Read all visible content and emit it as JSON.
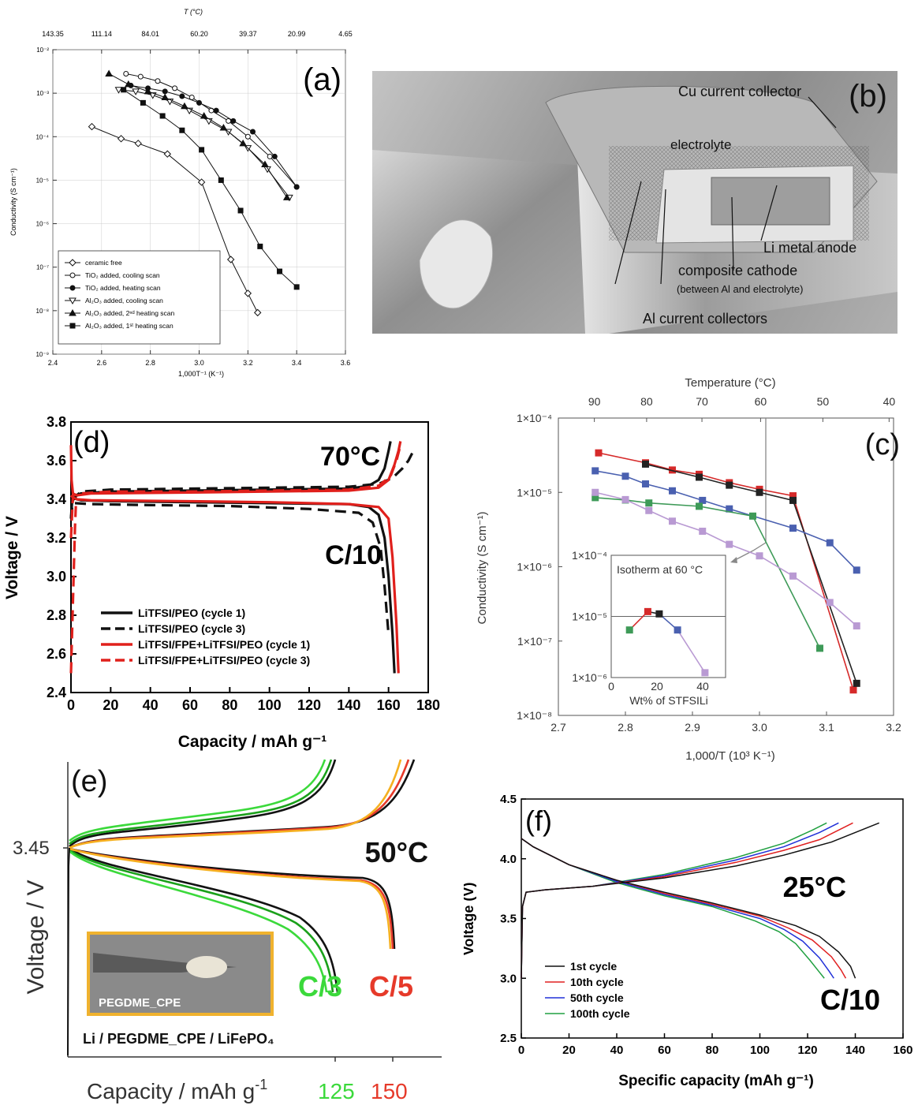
{
  "panels": {
    "a": {
      "label": "(a)",
      "top_axis_title": "T (°C)",
      "top_ticks": [
        "143.35",
        "111.14",
        "84.01",
        "60.20",
        "39.37",
        "20.99",
        "4.65"
      ],
      "x_ticks": [
        "2.4",
        "2.6",
        "2.8",
        "3.0",
        "3.2",
        "3.4",
        "3.6"
      ],
      "x_label": "1,000T⁻¹ (K⁻¹)",
      "y_label": "Conductivity (S cm⁻¹)",
      "y_ticks": [
        "10⁻²",
        "10⁻³",
        "10⁻⁴",
        "10⁻⁵",
        "10⁻⁶",
        "10⁻⁷",
        "10⁻⁸",
        "10⁻⁹"
      ],
      "legend": [
        "ceramic free",
        "TiO₂ added, cooling scan",
        "TiO₂ added, heating scan",
        "Al₂O₃ added, cooling scan",
        "Al₂O₃ added, 2ⁿᵈ heating scan",
        "Al₂O₃ added, 1ˢᵗ heating scan"
      ]
    },
    "b": {
      "label": "(b)",
      "annotations": {
        "cu": "Cu current collector",
        "electrolyte": "electrolyte",
        "li": "Li metal anode",
        "cathode": "composite cathode",
        "cathode_sub": "(between Al and electrolyte)",
        "al": "Al current collectors"
      }
    },
    "c": {
      "label": "(c)",
      "top_axis_title": "Temperature (°C)",
      "top_ticks": [
        "90",
        "80",
        "70",
        "60",
        "50",
        "40"
      ],
      "x_ticks": [
        "2.7",
        "2.8",
        "2.9",
        "3.0",
        "3.1",
        "3.2"
      ],
      "x_label": "1,000/T (10³ K⁻¹)",
      "y_label": "Conductivity (S cm⁻¹)",
      "y_ticks": [
        "1×10⁻⁴",
        "1×10⁻⁵",
        "1×10⁻⁶",
        "1×10⁻⁷",
        "1×10⁻⁸"
      ],
      "inset_title": "Isotherm at 60 °C",
      "inset_y_ticks": [
        "1×10⁻⁴",
        "1×10⁻⁵",
        "1×10⁻⁶"
      ],
      "inset_x_ticks": [
        "0",
        "20",
        "40"
      ],
      "inset_x_label": "Wt% of STFSILi"
    },
    "d": {
      "label": "(d)",
      "temp": "70°C",
      "rate": "C/10",
      "x_label": "Capacity / mAh g⁻¹",
      "y_label": "Voltage / V",
      "x_ticks": [
        "0",
        "20",
        "40",
        "60",
        "80",
        "100",
        "120",
        "140",
        "160",
        "180"
      ],
      "y_ticks": [
        "2.4",
        "2.6",
        "2.8",
        "3.0",
        "3.2",
        "3.4",
        "3.6",
        "3.8"
      ],
      "legend": [
        "LiTFSI/PEO (cycle 1)",
        "LiTFSI/PEO (cycle 3)",
        "LiTFSI/FPE+LiTFSI/PEO (cycle 1)",
        "LiTFSI/FPE+LiTFSI/PEO (cycle 3)"
      ]
    },
    "e": {
      "label": "(e)",
      "temp": "50°C",
      "y_tick": "3.45",
      "y_label": "Voltage / V",
      "x_label": "Capacity / mAh g",
      "x_label_sup": "-1",
      "x_tick_125": "125",
      "x_tick_150": "150",
      "rate_c3": "C/3",
      "rate_c5": "C/5",
      "inset_label": "PEGDME_CPE",
      "cell_label": "Li / PEGDME_CPE / LiFePO₄"
    },
    "f": {
      "label": "(f)",
      "temp": "25°C",
      "rate": "C/10",
      "x_label": "Specific capacity (mAh g⁻¹)",
      "y_label": "Voltage (V)",
      "x_ticks": [
        "0",
        "20",
        "40",
        "60",
        "80",
        "100",
        "120",
        "140",
        "160"
      ],
      "y_ticks": [
        "2.5",
        "3.0",
        "3.5",
        "4.0",
        "4.5"
      ],
      "legend": [
        "1st cycle",
        "10th cycle",
        "50th cycle",
        "100th cycle"
      ]
    }
  },
  "chart_data": [
    {
      "panel": "a",
      "type": "scatter",
      "xlim": [
        2.4,
        3.6
      ],
      "ylim": [
        1e-09,
        0.01
      ],
      "yscale": "log",
      "series": [
        {
          "name": "ceramic free",
          "marker": "open-diamond",
          "x": [
            2.56,
            2.68,
            2.75,
            2.87,
            3.01,
            3.13,
            3.2,
            3.24
          ],
          "y": [
            0.00017,
            9e-05,
            7e-05,
            4e-05,
            9e-06,
            1.5e-07,
            2.5e-08,
            9e-09
          ]
        },
        {
          "name": "TiO₂ added, cooling scan",
          "marker": "open-circle",
          "x": [
            2.7,
            2.76,
            2.83,
            2.9,
            2.97,
            3.05,
            3.12,
            3.2,
            3.29,
            3.4
          ],
          "y": [
            0.0028,
            0.0024,
            0.0019,
            0.0013,
            0.0008,
            0.0004,
            0.00023,
            0.0001,
            3.5e-05,
            7e-06
          ]
        },
        {
          "name": "TiO₂ added, heating scan",
          "marker": "filled-circle",
          "x": [
            2.72,
            2.79,
            2.86,
            2.93,
            3.0,
            3.07,
            3.14,
            3.22,
            3.31,
            3.4
          ],
          "y": [
            0.0015,
            0.0013,
            0.0011,
            0.00085,
            0.0006,
            0.0004,
            0.00023,
            0.00013,
            3.5e-05,
            7e-06
          ]
        },
        {
          "name": "Al₂O₃ added, cooling scan",
          "marker": "open-triangle-down",
          "x": [
            2.67,
            2.74,
            2.81,
            2.88,
            2.96,
            3.04,
            3.12,
            3.2,
            3.28,
            3.37
          ],
          "y": [
            0.0012,
            0.0011,
            0.0009,
            0.00065,
            0.0004,
            0.00023,
            0.00013,
            5.5e-05,
            1.8e-05,
            4e-06
          ]
        },
        {
          "name": "Al₂O₃ added, 2ⁿᵈ heating scan",
          "marker": "filled-triangle",
          "x": [
            2.63,
            2.71,
            2.79,
            2.86,
            2.94,
            3.02,
            3.1,
            3.18,
            3.27,
            3.36
          ],
          "y": [
            0.0028,
            0.0016,
            0.0011,
            0.0008,
            0.0005,
            0.0003,
            0.00016,
            7e-05,
            2.3e-05,
            4e-06
          ]
        },
        {
          "name": "Al₂O₃ added, 1ˢᵗ heating scan",
          "marker": "filled-square",
          "x": [
            2.69,
            2.77,
            2.85,
            2.93,
            3.01,
            3.09,
            3.17,
            3.25,
            3.33,
            3.4
          ],
          "y": [
            0.0012,
            0.0006,
            0.0003,
            0.00014,
            5e-05,
            1e-05,
            2e-06,
            3e-07,
            8e-08,
            3.5e-08
          ]
        }
      ]
    },
    {
      "panel": "c",
      "type": "line",
      "xlim": [
        2.7,
        3.2
      ],
      "ylim": [
        1e-08,
        0.0001
      ],
      "yscale": "log",
      "series": [
        {
          "color": "#d62a2a",
          "x": [
            2.76,
            2.83,
            2.87,
            2.91,
            2.955,
            3.0,
            3.05,
            3.14
          ],
          "y": [
            3.4e-05,
            2.5e-05,
            2e-05,
            1.75e-05,
            1.35e-05,
            1.1e-05,
            9e-06,
            2.2e-08
          ]
        },
        {
          "color": "#222222",
          "x": [
            2.83,
            2.91,
            2.955,
            3.0,
            3.05,
            3.145
          ],
          "y": [
            2.4e-05,
            1.6e-05,
            1.25e-05,
            1e-05,
            7.8e-06,
            2.7e-08
          ]
        },
        {
          "color": "#4a60b0",
          "x": [
            2.755,
            2.8,
            2.83,
            2.87,
            2.915,
            2.955,
            3.05,
            3.105,
            3.145
          ],
          "y": [
            1.95e-05,
            1.65e-05,
            1.3e-05,
            1.05e-05,
            7.8e-06,
            6e-06,
            3.3e-06,
            2.1e-06,
            9e-07
          ]
        },
        {
          "color": "#3e9a58",
          "x": [
            2.755,
            2.8,
            2.835,
            2.91,
            2.99,
            3.09
          ],
          "y": [
            8.5e-06,
            7.9e-06,
            7.2e-06,
            6.5e-06,
            4.8e-06,
            8e-08
          ]
        },
        {
          "color": "#b99ad3",
          "x": [
            2.755,
            2.8,
            2.835,
            2.87,
            2.915,
            2.955,
            3.0,
            3.05,
            3.105,
            3.145
          ],
          "y": [
            1e-05,
            8e-06,
            5.7e-06,
            4.1e-06,
            3e-06,
            2e-06,
            1.4e-06,
            7.5e-07,
            3.3e-07,
            1.6e-07
          ]
        }
      ],
      "inset": {
        "xlim": [
          0,
          50
        ],
        "ylim": [
          1e-06,
          0.0001
        ],
        "x": [
          8,
          16,
          21,
          29,
          41
        ],
        "y": [
          6e-06,
          1.2e-05,
          1.1e-05,
          6e-06,
          1.2e-06
        ],
        "colors": [
          "#3e9a58",
          "#d62a2a",
          "#222222",
          "#4a60b0",
          "#b99ad3"
        ]
      }
    },
    {
      "panel": "d",
      "type": "line",
      "xlim": [
        0,
        180
      ],
      "ylim": [
        2.4,
        3.8
      ],
      "series": [
        {
          "name": "LiTFSI/PEO (cycle 1)",
          "color": "#111111",
          "dash": false,
          "charge": {
            "x": [
              0,
              0.5,
              2,
              5,
              20,
              60,
              100,
              140,
              150,
              155,
              158,
              160,
              161
            ],
            "y": [
              3.3,
              3.38,
              3.42,
              3.43,
              3.44,
              3.445,
              3.45,
              3.455,
              3.47,
              3.5,
              3.56,
              3.65,
              3.7
            ]
          },
          "discharge": {
            "x": [
              0,
              1,
              3,
              5,
              20,
              60,
              100,
              140,
              150,
              155,
              158,
              160,
              162,
              163
            ],
            "y": [
              3.42,
              3.41,
              3.4,
              3.395,
              3.39,
              3.385,
              3.38,
              3.375,
              3.36,
              3.32,
              3.2,
              3.0,
              2.7,
              2.5
            ]
          }
        },
        {
          "name": "LiTFSI/PEO (cycle 3)",
          "color": "#111111",
          "dash": true,
          "charge": {
            "x": [
              0,
              1,
              5,
              20,
              60,
              100,
              140,
              155,
              162,
              167,
              170,
              172
            ],
            "y": [
              3.3,
              3.4,
              3.44,
              3.45,
              3.455,
              3.46,
              3.465,
              3.48,
              3.51,
              3.56,
              3.6,
              3.64
            ]
          },
          "discharge": {
            "x": [
              2,
              10,
              40,
              80,
              120,
              145,
              152,
              156,
              158,
              160
            ],
            "y": [
              3.38,
              3.375,
              3.37,
              3.365,
              3.35,
              3.33,
              3.28,
              3.15,
              2.95,
              2.7
            ]
          }
        },
        {
          "name": "LiTFSI/FPE+LiTFSI/PEO (cycle 1)",
          "color": "#e0201c",
          "dash": false,
          "charge": {
            "x": [
              0,
              0.3,
              1,
              3,
              10,
              60,
              100,
              140,
              155,
              160,
              163,
              165,
              166
            ],
            "y": [
              3.68,
              3.5,
              3.43,
              3.42,
              3.43,
              3.435,
              3.44,
              3.445,
              3.46,
              3.5,
              3.58,
              3.65,
              3.7
            ]
          },
          "discharge": {
            "x": [
              0,
              1,
              3,
              10,
              60,
              100,
              140,
              155,
              160,
              162,
              164,
              165
            ],
            "y": [
              3.42,
              3.41,
              3.4,
              3.395,
              3.39,
              3.385,
              3.375,
              3.36,
              3.3,
              3.1,
              2.75,
              2.5
            ]
          }
        },
        {
          "name": "LiTFSI/FPE+LiTFSI/PEO (cycle 3)",
          "color": "#e0201c",
          "dash": true,
          "charge": {
            "x": [
              0,
              1,
              5,
              20,
              60,
              100,
              140,
              155,
              161,
              164,
              166
            ],
            "y": [
              3.2,
              3.42,
              3.43,
              3.44,
              3.44,
              3.445,
              3.45,
              3.47,
              3.52,
              3.6,
              3.68
            ]
          },
          "discharge": {
            "x": [
              0,
              0.4,
              0.8,
              1.2,
              1.6,
              2.0,
              2.5
            ],
            "y": [
              2.5,
              2.65,
              2.8,
              2.95,
              3.1,
              3.25,
              3.38
            ]
          }
        }
      ]
    },
    {
      "panel": "e",
      "type": "line",
      "series": [
        {
          "name": "C/3",
          "color": "#3bd93b"
        },
        {
          "name": "C/5",
          "color": "#e63a2a"
        }
      ]
    },
    {
      "panel": "f",
      "type": "line",
      "xlim": [
        0,
        160
      ],
      "ylim": [
        2.5,
        4.5
      ],
      "series": [
        {
          "name": "1st cycle",
          "color": "#111111",
          "charge": {
            "x": [
              0,
              0.5,
              2,
              10,
              30,
              60,
              90,
              110,
              130,
              150
            ],
            "y": [
              3.0,
              3.6,
              3.72,
              3.74,
              3.77,
              3.84,
              3.94,
              4.03,
              4.14,
              4.3
            ]
          },
          "discharge": {
            "x": [
              0,
              5,
              20,
              40,
              60,
              80,
              100,
              115,
              125,
              133,
              138,
              140
            ],
            "y": [
              4.17,
              4.1,
              3.95,
              3.82,
              3.72,
              3.63,
              3.53,
              3.44,
              3.35,
              3.22,
              3.1,
              3.0
            ]
          }
        },
        {
          "name": "10th cycle",
          "color": "#e02020",
          "charge": {
            "x": [
              0,
              0.5,
              2,
              10,
              30,
              60,
              90,
              110,
              125,
              139
            ],
            "y": [
              3.0,
              3.6,
              3.72,
              3.74,
              3.77,
              3.85,
              3.97,
              4.07,
              4.16,
              4.3
            ]
          },
          "discharge": {
            "x": [
              0,
              5,
              20,
              40,
              60,
              80,
              100,
              112,
              122,
              130,
              134,
              136
            ],
            "y": [
              4.17,
              4.1,
              3.95,
              3.82,
              3.71,
              3.62,
              3.52,
              3.42,
              3.32,
              3.18,
              3.07,
              3.0
            ]
          }
        },
        {
          "name": "50th cycle",
          "color": "#2030d8",
          "charge": {
            "x": [
              0,
              0.5,
              2,
              10,
              30,
              60,
              90,
              110,
              125,
              133
            ],
            "y": [
              3.0,
              3.6,
              3.72,
              3.74,
              3.77,
              3.86,
              3.99,
              4.1,
              4.22,
              4.3
            ]
          },
          "discharge": {
            "x": [
              0,
              5,
              20,
              40,
              60,
              80,
              100,
              110,
              118,
              125,
              129,
              131
            ],
            "y": [
              4.17,
              4.1,
              3.95,
              3.81,
              3.7,
              3.61,
              3.5,
              3.41,
              3.31,
              3.17,
              3.06,
              3.0
            ]
          }
        },
        {
          "name": "100th cycle",
          "color": "#20a040",
          "charge": {
            "x": [
              0,
              0.5,
              2,
              10,
              30,
              60,
              90,
              110,
              122,
              128
            ],
            "y": [
              3.0,
              3.6,
              3.72,
              3.74,
              3.77,
              3.87,
              4.01,
              4.13,
              4.24,
              4.3
            ]
          },
          "discharge": {
            "x": [
              0,
              5,
              20,
              40,
              60,
              80,
              98,
              108,
              115,
              121,
              125,
              127
            ],
            "y": [
              4.17,
              4.1,
              3.95,
              3.8,
              3.69,
              3.6,
              3.48,
              3.39,
              3.29,
              3.15,
              3.05,
              3.0
            ]
          }
        }
      ]
    }
  ]
}
